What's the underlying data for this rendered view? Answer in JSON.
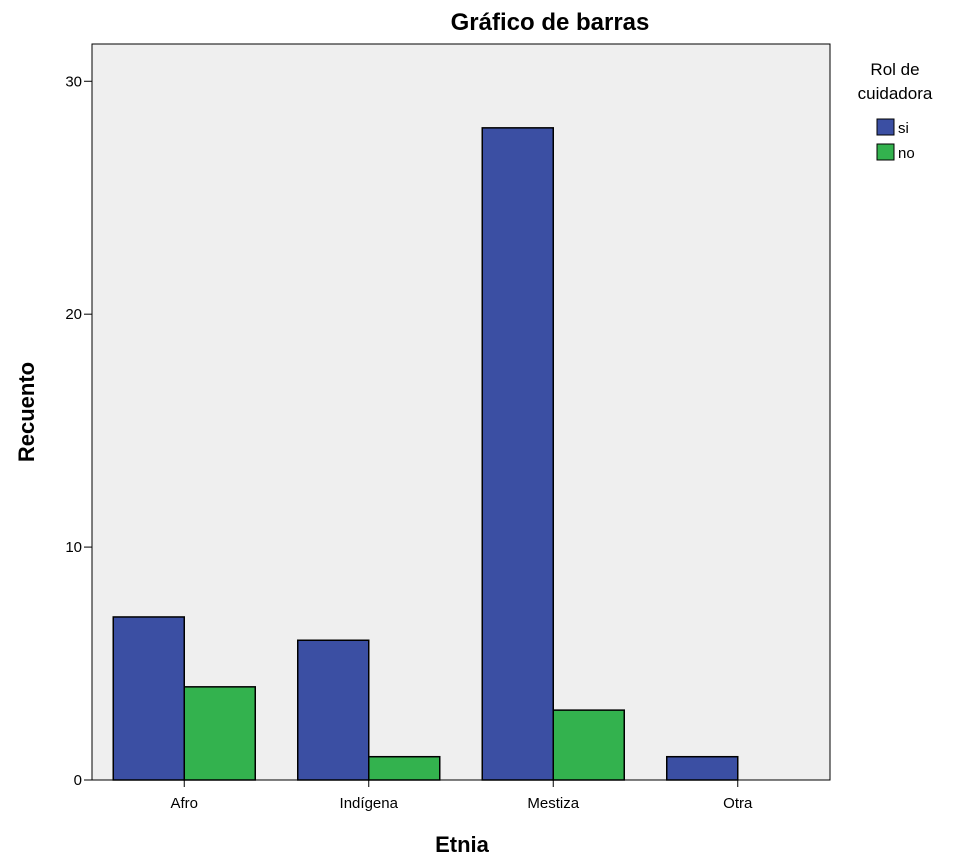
{
  "chart_data": {
    "type": "bar",
    "title": "Gráfico de barras",
    "xlabel": "Etnia",
    "ylabel": "Recuento",
    "categories": [
      "Afro",
      "Indígena",
      "Mestiza",
      "Otra"
    ],
    "series": [
      {
        "name": "si",
        "values": [
          7,
          6,
          28,
          1
        ],
        "color": "#3b4fa3"
      },
      {
        "name": "no",
        "values": [
          4,
          1,
          3,
          0
        ],
        "color": "#33b24e"
      }
    ],
    "ylim": [
      0,
      31.6
    ],
    "yticks": [
      0,
      10,
      20,
      30
    ],
    "grid": false,
    "plot_background": "#efefef",
    "legend": {
      "title_lines": [
        "Rol de",
        "cuidadora"
      ],
      "placement": "right"
    }
  }
}
